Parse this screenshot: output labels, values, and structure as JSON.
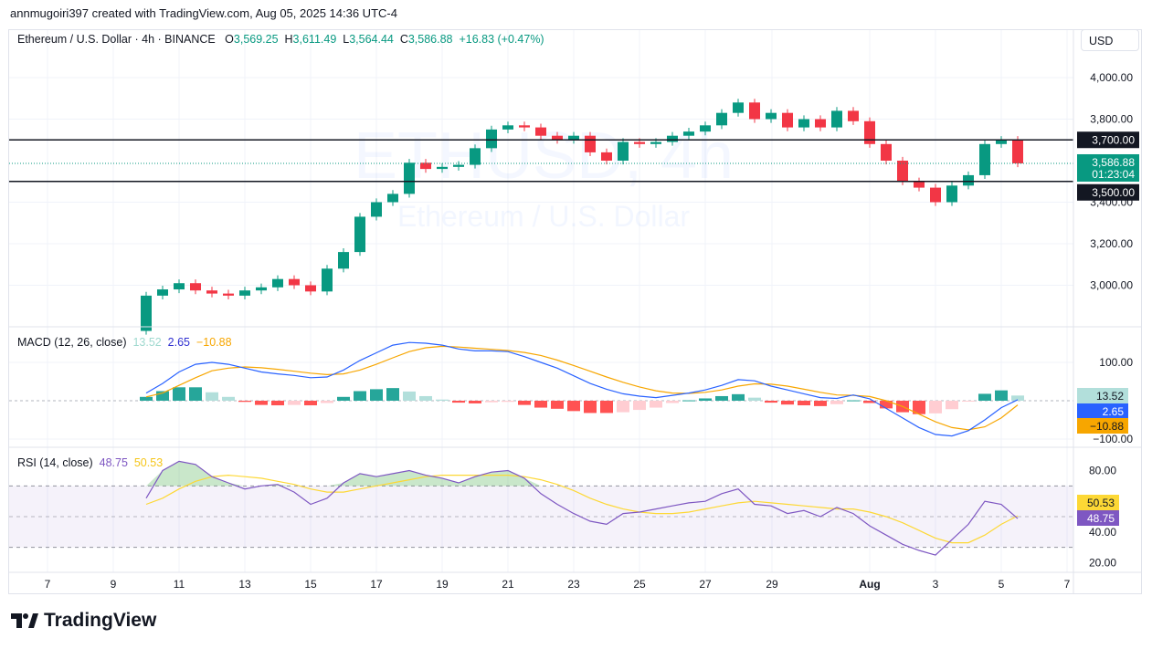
{
  "credit": "annmugoiri397 created with TradingView.com, Aug 05, 2025 14:36 UTC-4",
  "header": {
    "symbol": "Ethereum / U.S. Dollar · 4h · BINANCE",
    "open_label": "O",
    "open": "3,569.25",
    "high_label": "H",
    "high": "3,611.49",
    "low_label": "L",
    "low": "3,564.44",
    "close_label": "C",
    "close": "3,586.88",
    "change": "+16.83 (+0.47%)"
  },
  "currency_button": "USD",
  "watermark": {
    "line1": "ETHUSD, 4h",
    "line2": "Ethereum / U.S. Dollar"
  },
  "footer": {
    "logo": "TradingView"
  },
  "colors": {
    "up": "#089981",
    "down": "#f23645",
    "macd": "#2962ff",
    "signal": "#f7a600",
    "rsi": "#7e57c2",
    "rsi_ma": "#fdd835",
    "level_line": "#131722"
  },
  "chart_data": [
    {
      "type": "candlestick",
      "title": "Ethereum / U.S. Dollar · 4h · BINANCE",
      "x_tick_labels": [
        "7",
        "9",
        "11",
        "13",
        "15",
        "17",
        "19",
        "21",
        "23",
        "25",
        "27",
        "29",
        "Aug",
        "3",
        "5",
        "7"
      ],
      "y_tick_labels": [
        "4,000.00",
        "3,800.00",
        "3,400.00",
        "3,200.00",
        "3,000.00"
      ],
      "ylim": [
        2830,
        4120
      ],
      "first_open": 2780,
      "closes": [
        2950,
        2980,
        3010,
        2975,
        2960,
        2950,
        2975,
        2990,
        3030,
        3000,
        2970,
        3080,
        3160,
        3330,
        3400,
        3440,
        3590,
        3560,
        3570,
        3580,
        3660,
        3750,
        3770,
        3760,
        3720,
        3700,
        3720,
        3640,
        3600,
        3690,
        3680,
        3690,
        3720,
        3740,
        3770,
        3830,
        3880,
        3800,
        3830,
        3760,
        3800,
        3760,
        3840,
        3790,
        3680,
        3600,
        3500,
        3470,
        3400,
        3480,
        3530,
        3680,
        3700,
        3586.88
      ],
      "horizontal_levels": [
        {
          "value": 3700,
          "label": "3,700.00"
        },
        {
          "value": 3500,
          "label": "3,500.00"
        }
      ],
      "last_price": {
        "value": 3586.88,
        "label": "3,586.88",
        "countdown": "01:23:04"
      }
    },
    {
      "type": "macd",
      "title": "MACD (12, 26, close)",
      "legend_values": {
        "histogram": "13.52",
        "macd": "2.65",
        "signal": "−10.88"
      },
      "y_tick_labels": [
        "100.00",
        "−100.00"
      ],
      "ylim": [
        -130,
        130
      ],
      "macd": [
        20,
        45,
        75,
        95,
        100,
        95,
        85,
        75,
        70,
        66,
        60,
        62,
        80,
        105,
        125,
        145,
        152,
        150,
        145,
        135,
        130,
        130,
        128,
        115,
        100,
        85,
        65,
        45,
        30,
        18,
        12,
        8,
        14,
        20,
        28,
        40,
        55,
        52,
        38,
        28,
        18,
        8,
        6,
        15,
        5,
        -20,
        -45,
        -70,
        -88,
        -92,
        -78,
        -50,
        -18,
        2.65
      ],
      "signal": [
        10,
        20,
        40,
        60,
        78,
        85,
        88,
        86,
        82,
        77,
        72,
        68,
        70,
        80,
        95,
        112,
        128,
        138,
        142,
        140,
        137,
        134,
        131,
        126,
        118,
        106,
        92,
        77,
        62,
        48,
        36,
        26,
        20,
        19,
        22,
        28,
        38,
        44,
        43,
        38,
        30,
        22,
        15,
        14,
        11,
        0,
        -15,
        -35,
        -55,
        -70,
        -76,
        -68,
        -45,
        -10.88
      ],
      "histogram": [
        10,
        25,
        35,
        35,
        22,
        10,
        -3,
        -11,
        -12,
        -11,
        -12,
        -6,
        10,
        25,
        30,
        33,
        24,
        12,
        3,
        -5,
        -7,
        -4,
        -3,
        -11,
        -18,
        -21,
        -27,
        -32,
        -32,
        -30,
        -24,
        -18,
        -6,
        1,
        6,
        12,
        17,
        8,
        -5,
        -10,
        -12,
        -14,
        -9,
        1,
        -6,
        -20,
        -30,
        -35,
        -33,
        -22,
        -2,
        18,
        27,
        13.52
      ]
    },
    {
      "type": "rsi",
      "title": "RSI (14, close)",
      "legend_values": {
        "rsi": "48.75",
        "ma": "50.53"
      },
      "y_tick_labels": [
        "80.00",
        "40.00",
        "20.00"
      ],
      "ylim": [
        14,
        94
      ],
      "bands": [
        30,
        50,
        70
      ],
      "rsi": [
        62,
        80,
        86,
        84,
        76,
        72,
        68,
        70,
        71,
        66,
        58,
        62,
        72,
        78,
        76,
        78,
        80,
        77,
        75,
        72,
        76,
        79,
        80,
        75,
        65,
        58,
        52,
        47,
        45,
        52,
        53,
        55,
        57,
        59,
        60,
        65,
        68,
        58,
        57,
        52,
        54,
        50,
        56,
        52,
        44,
        38,
        32,
        28,
        25,
        35,
        45,
        60,
        58,
        48.75
      ],
      "ma": [
        58,
        62,
        68,
        73,
        76,
        77,
        76,
        75,
        73,
        71,
        68,
        66,
        66,
        68,
        70,
        72,
        74,
        76,
        77,
        77,
        77,
        77,
        77,
        76,
        74,
        71,
        67,
        62,
        58,
        55,
        53,
        52,
        52,
        53,
        55,
        57,
        59,
        60,
        59,
        58,
        57,
        56,
        55,
        55,
        53,
        50,
        46,
        41,
        36,
        33,
        33,
        38,
        45,
        50.53
      ]
    }
  ]
}
